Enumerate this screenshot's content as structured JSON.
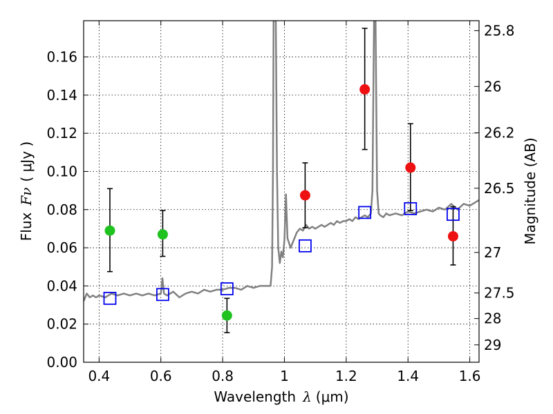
{
  "chart_data": {
    "type": "scatter",
    "xlabel": {
      "prefix": "Wavelength",
      "symbol": "λ",
      "unit": "(μm)"
    },
    "ylabel": {
      "prefix": "Flux",
      "symbol": "Fν",
      "unit": "( μJy )"
    },
    "ylabel_right": "Magnitude (AB)",
    "xlim": [
      0.35,
      1.63
    ],
    "ylim": [
      0.0,
      0.179
    ],
    "grid": true,
    "x_ticks": [
      0.4,
      0.6,
      0.8,
      1.0,
      1.2,
      1.4,
      1.6
    ],
    "x_tick_labels": [
      "0.4",
      "0.6",
      "0.8",
      "1",
      "1.2",
      "1.4",
      "1.6"
    ],
    "y_ticks": [
      0.0,
      0.02,
      0.04,
      0.06,
      0.08,
      0.1,
      0.12,
      0.14,
      0.16
    ],
    "y_tick_labels": [
      "0.00",
      "0.02",
      "0.04",
      "0.06",
      "0.08",
      "0.10",
      "0.12",
      "0.14",
      "0.16"
    ],
    "right_ticks": [
      25.8,
      26,
      26.2,
      26.5,
      27,
      27.5,
      28,
      29
    ],
    "right_tick_labels": [
      "25.8",
      "26",
      "26.2",
      "26.5",
      "27",
      "27.5",
      "28",
      "29"
    ],
    "colors": {
      "green": "#1fc21f",
      "red": "#ee1111",
      "model": "#808080",
      "square": "#0000ee",
      "error": "#000000"
    },
    "series": [
      {
        "name": "green-photometry",
        "marker": "circle",
        "color": "#1fc21f",
        "points": [
          {
            "x": 0.435,
            "y": 0.069,
            "ylo": 0.0475,
            "yhi": 0.091
          },
          {
            "x": 0.606,
            "y": 0.067,
            "ylo": 0.0555,
            "yhi": 0.0795
          },
          {
            "x": 0.814,
            "y": 0.0245,
            "ylo": 0.0155,
            "yhi": 0.0335
          }
        ]
      },
      {
        "name": "red-photometry",
        "marker": "circle",
        "color": "#ee1111",
        "points": [
          {
            "x": 1.067,
            "y": 0.0875,
            "ylo": 0.0705,
            "yhi": 0.1045
          },
          {
            "x": 1.26,
            "y": 0.143,
            "ylo": 0.1115,
            "yhi": 0.175
          },
          {
            "x": 1.408,
            "y": 0.102,
            "ylo": 0.0795,
            "yhi": 0.125
          },
          {
            "x": 1.546,
            "y": 0.066,
            "ylo": 0.051,
            "yhi": 0.0815
          }
        ]
      },
      {
        "name": "model-synthetic-photometry",
        "marker": "square",
        "color": "#0000ee",
        "points": [
          {
            "x": 0.435,
            "y": 0.0335
          },
          {
            "x": 0.606,
            "y": 0.0355
          },
          {
            "x": 0.814,
            "y": 0.0385
          },
          {
            "x": 1.067,
            "y": 0.061
          },
          {
            "x": 1.26,
            "y": 0.0785
          },
          {
            "x": 1.408,
            "y": 0.0805
          },
          {
            "x": 1.546,
            "y": 0.0775
          }
        ]
      },
      {
        "name": "model-spectrum",
        "type": "line",
        "color": "#808080",
        "x": [
          0.35,
          0.36,
          0.37,
          0.38,
          0.39,
          0.4,
          0.42,
          0.44,
          0.46,
          0.48,
          0.5,
          0.52,
          0.54,
          0.56,
          0.58,
          0.6,
          0.605,
          0.61,
          0.62,
          0.64,
          0.66,
          0.68,
          0.7,
          0.72,
          0.74,
          0.76,
          0.78,
          0.8,
          0.82,
          0.84,
          0.86,
          0.88,
          0.9,
          0.92,
          0.94,
          0.955,
          0.96,
          0.963,
          0.965,
          0.968,
          0.972,
          0.976,
          0.98,
          0.985,
          0.99,
          0.995,
          1.0,
          1.005,
          1.01,
          1.02,
          1.03,
          1.04,
          1.05,
          1.06,
          1.07,
          1.08,
          1.09,
          1.1,
          1.11,
          1.12,
          1.13,
          1.14,
          1.15,
          1.16,
          1.17,
          1.18,
          1.19,
          1.2,
          1.21,
          1.22,
          1.23,
          1.24,
          1.25,
          1.26,
          1.27,
          1.28,
          1.285,
          1.29,
          1.295,
          1.3,
          1.305,
          1.31,
          1.32,
          1.33,
          1.34,
          1.36,
          1.38,
          1.4,
          1.42,
          1.44,
          1.46,
          1.48,
          1.5,
          1.52,
          1.54,
          1.56,
          1.58,
          1.6,
          1.62,
          1.63
        ],
        "y": [
          0.032,
          0.036,
          0.034,
          0.035,
          0.034,
          0.035,
          0.034,
          0.036,
          0.035,
          0.036,
          0.035,
          0.036,
          0.035,
          0.036,
          0.035,
          0.036,
          0.044,
          0.036,
          0.035,
          0.037,
          0.034,
          0.036,
          0.037,
          0.036,
          0.038,
          0.037,
          0.038,
          0.038,
          0.039,
          0.039,
          0.038,
          0.04,
          0.039,
          0.04,
          0.04,
          0.04,
          0.05,
          0.1,
          0.179,
          0.179,
          0.179,
          0.1,
          0.06,
          0.052,
          0.058,
          0.055,
          0.064,
          0.088,
          0.065,
          0.06,
          0.064,
          0.068,
          0.07,
          0.069,
          0.072,
          0.07,
          0.071,
          0.07,
          0.071,
          0.072,
          0.071,
          0.072,
          0.073,
          0.072,
          0.074,
          0.073,
          0.074,
          0.074,
          0.075,
          0.074,
          0.076,
          0.075,
          0.076,
          0.077,
          0.076,
          0.078,
          0.09,
          0.179,
          0.179,
          0.09,
          0.078,
          0.077,
          0.076,
          0.078,
          0.077,
          0.078,
          0.077,
          0.079,
          0.078,
          0.079,
          0.08,
          0.079,
          0.081,
          0.08,
          0.083,
          0.08,
          0.083,
          0.082,
          0.084,
          0.085
        ]
      }
    ]
  }
}
